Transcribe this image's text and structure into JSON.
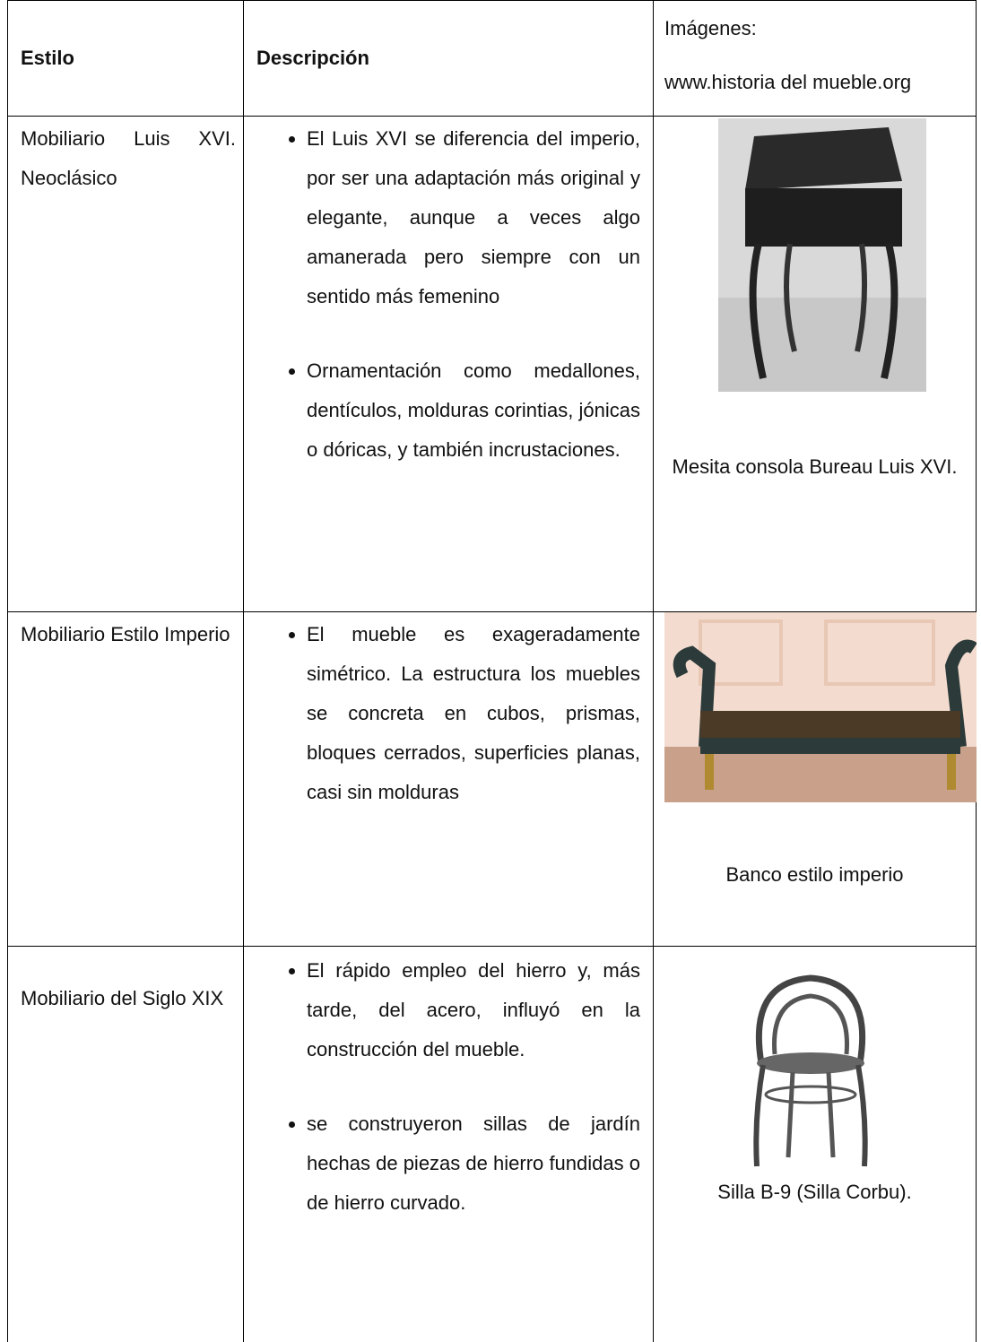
{
  "header": {
    "estilo": "Estilo",
    "descripcion": "Descripción",
    "imagenes": "Imágenes:",
    "fuente": "www.historia del mueble.org"
  },
  "rows": [
    {
      "estilo": "Mobiliario Luis XVI. Neoclásico",
      "bullets": [
        "El Luis XVI se diferencia del imperio, por ser una adaptación más original y elegante, aunque a veces algo amanerada pero siempre con un sentido más femenino",
        "Ornamentación como medallones, dentículos, molduras corintias, jónicas o dóricas, y también incrustaciones."
      ],
      "caption": "Mesita consola Bureau Luis XVI."
    },
    {
      "estilo": "Mobiliario Estilo Imperio",
      "bullets": [
        "El mueble es exageradamente simétrico. La estructura los muebles se concreta en cubos, prismas, bloques cerrados, superficies planas, casi sin molduras"
      ],
      "caption": "Banco estilo imperio"
    },
    {
      "estilo": "Mobiliario del Siglo XIX",
      "bullets": [
        "El rápido empleo del hierro y, más tarde, del acero, influyó en la construcción del mueble.",
        "se construyeron sillas de jardín hechas de piezas de hierro fundidas o de hierro curvado."
      ],
      "caption": "Silla B-9 (Silla Corbu)."
    }
  ]
}
